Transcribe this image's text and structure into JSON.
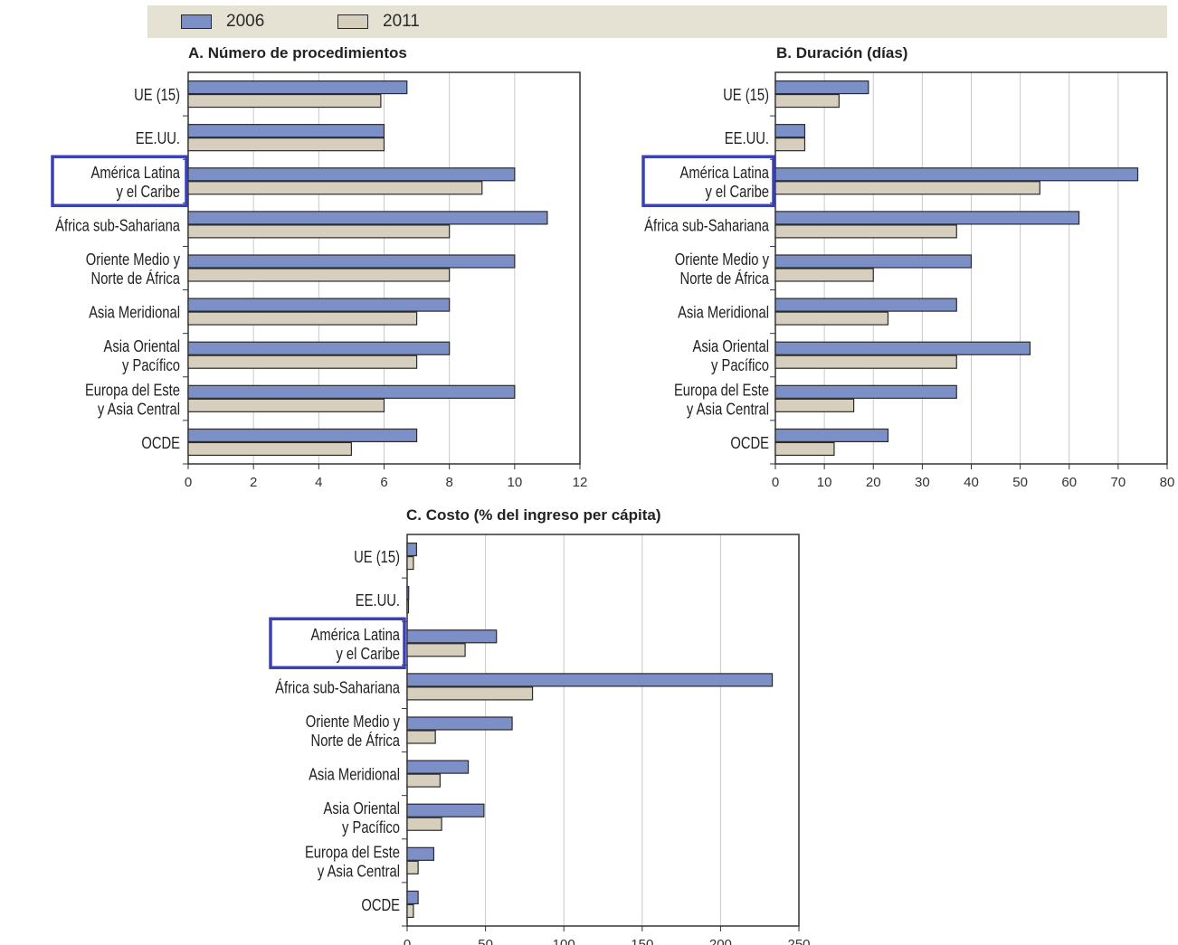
{
  "legend": [
    {
      "label": "2006",
      "color": "#7d8fc7"
    },
    {
      "label": "2011",
      "color": "#d7cfbd"
    }
  ],
  "highlight_color": "#3a40b8",
  "highlight_category": 2,
  "categories": [
    [
      "UE (15)"
    ],
    [
      "EE.UU."
    ],
    [
      "América Latina",
      "y el Caribe"
    ],
    [
      "África sub-Sahariana"
    ],
    [
      "Oriente Medio y",
      "Norte de África"
    ],
    [
      "Asia Meridional"
    ],
    [
      "Asia Oriental",
      "y Pacífico"
    ],
    [
      "Europa del Este",
      "y Asia Central"
    ],
    [
      "OCDE"
    ]
  ],
  "chart_data": [
    {
      "type": "bar",
      "orientation": "horizontal",
      "title": "A. Número de procedimientos",
      "xlim": [
        0,
        12
      ],
      "xticks": [
        "0",
        "2",
        "4",
        "6",
        "8",
        "10",
        "12"
      ],
      "grid": true,
      "series": [
        {
          "name": "2006",
          "values": [
            6.7,
            6.0,
            10.0,
            11.0,
            10.0,
            8.0,
            8.0,
            10.0,
            7.0
          ]
        },
        {
          "name": "2011",
          "values": [
            5.9,
            6.0,
            9.0,
            8.0,
            8.0,
            7.0,
            7.0,
            6.0,
            5.0
          ]
        }
      ]
    },
    {
      "type": "bar",
      "orientation": "horizontal",
      "title": "B. Duración (días)",
      "xlim": [
        0,
        80
      ],
      "xticks": [
        "0",
        "10",
        "20",
        "30",
        "40",
        "50",
        "60",
        "70",
        "80"
      ],
      "grid": true,
      "series": [
        {
          "name": "2006",
          "values": [
            19,
            6,
            74,
            62,
            40,
            37,
            52,
            37,
            23
          ]
        },
        {
          "name": "2011",
          "values": [
            13,
            6,
            54,
            37,
            20,
            23,
            37,
            16,
            12
          ]
        }
      ]
    },
    {
      "type": "bar",
      "orientation": "horizontal",
      "title": "C. Costo (% del ingreso per cápita)",
      "xlim": [
        0,
        250
      ],
      "xticks": [
        "0",
        "50",
        "100",
        "150",
        "200",
        "250"
      ],
      "grid": true,
      "series": [
        {
          "name": "2006",
          "values": [
            6,
            1,
            57,
            233,
            67,
            39,
            49,
            17,
            7
          ]
        },
        {
          "name": "2011",
          "values": [
            4,
            0.5,
            37,
            80,
            18,
            21,
            22,
            7,
            4
          ]
        }
      ]
    }
  ]
}
